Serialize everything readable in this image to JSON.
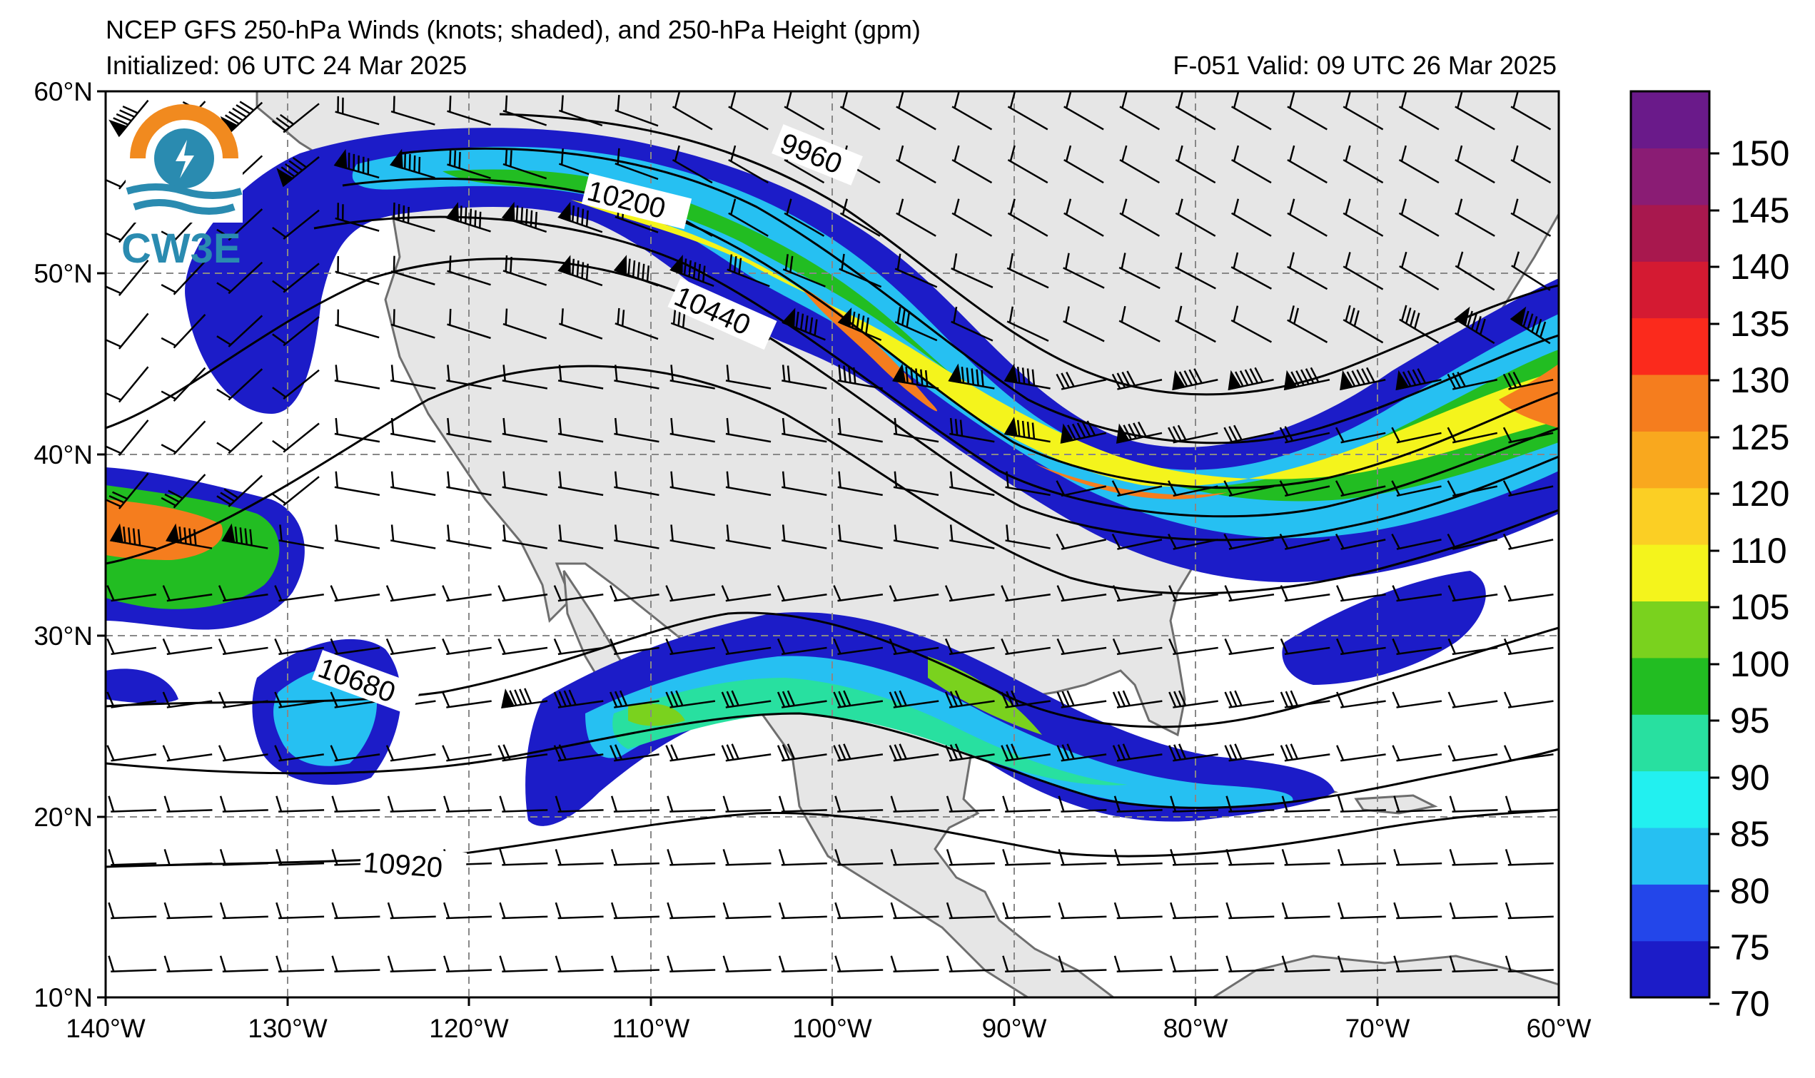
{
  "header": {
    "title": "NCEP GFS 250-hPa Winds (knots; shaded), and 250-hPa Height (gpm)",
    "initialized": "Initialized: 06 UTC 24 Mar 2025",
    "forecast": "F-051  Valid: 09 UTC 26 Mar 2025"
  },
  "logo": {
    "text": "CW3E"
  },
  "map": {
    "lat_labels": [
      "60°N",
      "50°N",
      "40°N",
      "30°N",
      "20°N",
      "10°N"
    ],
    "lon_labels": [
      "140°W",
      "130°W",
      "120°W",
      "110°W",
      "100°W",
      "90°W",
      "80°W",
      "70°W",
      "60°W"
    ],
    "extent": {
      "lon": [
        -140,
        -60
      ],
      "lat": [
        10,
        60
      ]
    },
    "contour_labels": [
      "9960",
      "10200",
      "10440",
      "10680",
      "10920"
    ],
    "land_color": "#e6e6e6",
    "ocean_color": "#ffffff"
  },
  "colorbar": {
    "labels": [
      "70",
      "75",
      "80",
      "85",
      "90",
      "95",
      "100",
      "105",
      "110",
      "120",
      "125",
      "130",
      "135",
      "140",
      "145",
      "150"
    ],
    "colors": [
      "#1c1cc8",
      "#2346ea",
      "#26c0f2",
      "#22f0f0",
      "#28e0a0",
      "#22bd22",
      "#7ad21e",
      "#f4f41c",
      "#fbcf24",
      "#f9a81e",
      "#f57d1e",
      "#fb2a1c",
      "#d41a32",
      "#a8184e",
      "#8a1c74",
      "#6a1a8a"
    ]
  }
}
